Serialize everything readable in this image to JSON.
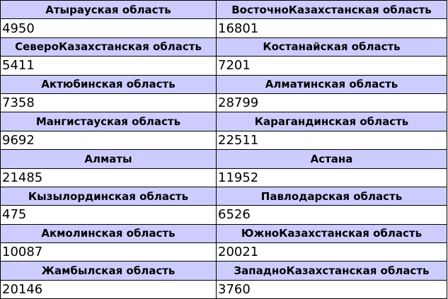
{
  "colors": {
    "header_bg": "#ccccff",
    "value_bg": "#ffffff",
    "border": "#000000"
  },
  "rows": [
    [
      {
        "name": "Атырауская область",
        "value": "4950"
      },
      {
        "name": "ВосточноКазахстанская область",
        "value": "16801"
      }
    ],
    [
      {
        "name": "СевероКазахстанская область",
        "value": "5411"
      },
      {
        "name": "Костанайская область",
        "value": "7201"
      }
    ],
    [
      {
        "name": "Актюбинская область",
        "value": "7358"
      },
      {
        "name": "Алматинская область",
        "value": "28799"
      }
    ],
    [
      {
        "name": "Мангистауская область",
        "value": "9692"
      },
      {
        "name": "Карагандинская область",
        "value": "22511"
      }
    ],
    [
      {
        "name": "Алматы",
        "value": "21485"
      },
      {
        "name": "Астана",
        "value": "11952"
      }
    ],
    [
      {
        "name": "Кызылординская область",
        "value": "475"
      },
      {
        "name": "Павлодарская область",
        "value": "6526"
      }
    ],
    [
      {
        "name": "Акмолинская область",
        "value": "10087"
      },
      {
        "name": "ЮжноКазахстанская область",
        "value": "20021"
      }
    ],
    [
      {
        "name": "Жамбылская область",
        "value": "20146"
      },
      {
        "name": "ЗападноКазахстанская область",
        "value": "3760"
      }
    ]
  ]
}
